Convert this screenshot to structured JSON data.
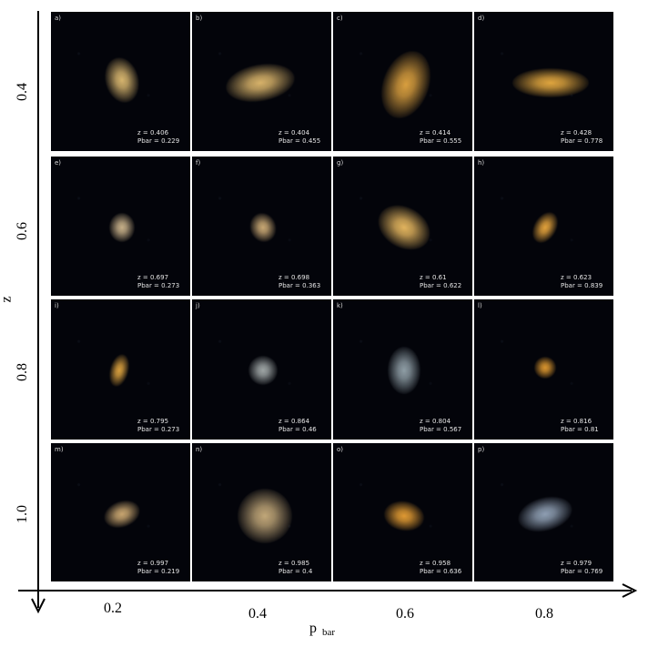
{
  "axes": {
    "y_label": "z",
    "x_label_main": "p",
    "x_label_sub": "bar",
    "row_labels": [
      "0.4",
      "0.6",
      "0.8",
      "1.0"
    ],
    "col_labels": [
      "0.2",
      "0.4",
      "0.6",
      "0.8"
    ]
  },
  "panels": [
    {
      "tag": "a)",
      "z": "z = 0.406",
      "pbar": "Pbar = 0.229",
      "galaxy_color": "#d7b56e"
    },
    {
      "tag": "b)",
      "z": "z = 0.404",
      "pbar": "Pbar = 0.455",
      "galaxy_color": "#d8b36a"
    },
    {
      "tag": "c)",
      "z": "z = 0.414",
      "pbar": "Pbar = 0.555",
      "galaxy_color": "#d99f3f"
    },
    {
      "tag": "d)",
      "z": "z = 0.428",
      "pbar": "Pbar = 0.778",
      "galaxy_color": "#e0a63f"
    },
    {
      "tag": "e)",
      "z": "z = 0.697",
      "pbar": "Pbar = 0.273",
      "galaxy_color": "#c7b089"
    },
    {
      "tag": "f)",
      "z": "z = 0.698",
      "pbar": "Pbar = 0.363",
      "galaxy_color": "#c9a874"
    },
    {
      "tag": "g)",
      "z": "z = 0.61",
      "pbar": "Pbar = 0.622",
      "galaxy_color": "#e2b45e"
    },
    {
      "tag": "h)",
      "z": "z = 0.623",
      "pbar": "Pbar = 0.839",
      "galaxy_color": "#e2a23c"
    },
    {
      "tag": "i)",
      "z": "z = 0.795",
      "pbar": "Pbar = 0.273",
      "galaxy_color": "#d89f3e"
    },
    {
      "tag": "j)",
      "z": "z = 0.864",
      "pbar": "Pbar = 0.46",
      "galaxy_color": "#9fa6a6"
    },
    {
      "tag": "k)",
      "z": "z = 0.804",
      "pbar": "Pbar = 0.567",
      "galaxy_color": "#8f9ea6"
    },
    {
      "tag": "l)",
      "z": "z = 0.816",
      "pbar": "Pbar = 0.81",
      "galaxy_color": "#d9952f"
    },
    {
      "tag": "m)",
      "z": "z = 0.997",
      "pbar": "Pbar = 0.219",
      "galaxy_color": "#c9a670"
    },
    {
      "tag": "n)",
      "z": "z = 0.985",
      "pbar": "Pbar = 0.4",
      "galaxy_color": "#c1a779"
    },
    {
      "tag": "o)",
      "z": "z = 0.958",
      "pbar": "Pbar = 0.636",
      "galaxy_color": "#e09a33"
    },
    {
      "tag": "p)",
      "z": "z = 0.979",
      "pbar": "Pbar = 0.769",
      "galaxy_color": "#8f9fb3"
    }
  ]
}
